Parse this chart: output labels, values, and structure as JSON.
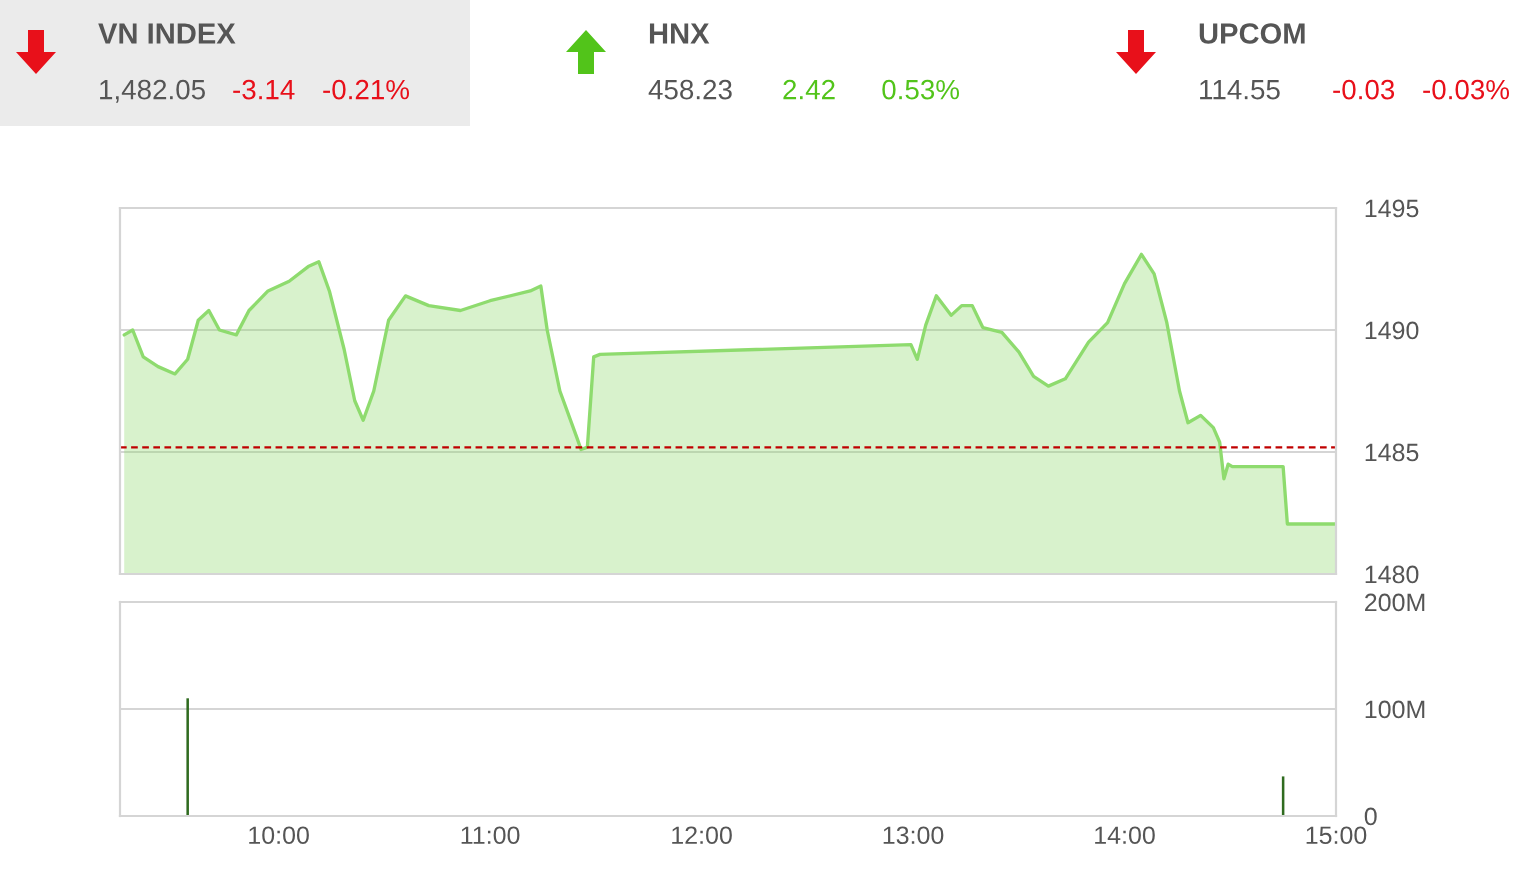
{
  "chart_data": [
    {
      "type": "other",
      "categories": [
        "VN INDEX",
        "HNX",
        "UPCOM"
      ],
      "annotations": [
        "1,482.05",
        "-3.14",
        "-0.21%",
        "458.23",
        "2.42",
        "0.53%",
        "114.55",
        "-0.03",
        "-0.03%"
      ],
      "colors": [
        "#e8101a",
        "#52c41a",
        "#e8101a"
      ]
    },
    {
      "type": "area",
      "x": [
        9.27,
        9.31,
        9.36,
        9.43,
        9.51,
        9.57,
        9.62,
        9.67,
        9.72,
        9.8,
        9.86,
        9.95,
        10.05,
        10.14,
        10.19,
        10.24,
        10.31,
        10.36,
        10.4,
        10.45,
        10.52,
        10.6,
        10.71,
        10.86,
        11.0,
        11.19,
        11.24,
        11.27,
        11.33,
        11.41,
        11.43,
        11.46,
        11.49,
        11.52,
        12.99,
        13.02,
        13.06,
        13.11,
        13.18,
        13.23,
        13.28,
        13.33,
        13.42,
        13.5,
        13.57,
        13.64,
        13.72,
        13.83,
        13.92,
        14.0,
        14.08,
        14.14,
        14.2,
        14.26,
        14.3,
        14.36,
        14.42,
        14.45,
        14.47,
        14.49,
        14.51,
        14.75,
        14.77,
        15.0
      ],
      "series": [
        {
          "color": "#8edb6e",
          "values": [
            1489.8,
            1490.0,
            1488.9,
            1488.5,
            1488.2,
            1488.8,
            1490.4,
            1490.8,
            1490.0,
            1489.8,
            1490.8,
            1491.6,
            1492.0,
            1492.6,
            1492.8,
            1491.6,
            1489.2,
            1487.1,
            1486.3,
            1487.5,
            1490.4,
            1491.4,
            1491.0,
            1490.8,
            1491.2,
            1491.6,
            1491.8,
            1490.0,
            1487.5,
            1485.6,
            1485.1,
            1485.2,
            1488.9,
            1489.0,
            1489.4,
            1488.8,
            1490.2,
            1491.4,
            1490.6,
            1491.0,
            1491.0,
            1490.1,
            1489.9,
            1489.1,
            1488.1,
            1487.7,
            1488.0,
            1489.5,
            1490.3,
            1491.9,
            1493.1,
            1492.3,
            1490.3,
            1487.5,
            1486.2,
            1486.5,
            1486.0,
            1485.4,
            1483.9,
            1484.5,
            1484.4,
            1484.4,
            1482.05,
            1482.05
          ]
        }
      ],
      "ylim": [
        1480,
        1495
      ],
      "yticks": [
        1480,
        1485,
        1490,
        1495
      ],
      "xlim": [
        9.25,
        15.0
      ],
      "ref_lines": [
        {
          "axis": "y",
          "value": 1485.19,
          "color": "#c00000",
          "line_style": "dashed"
        }
      ],
      "grid": "y",
      "tick_labels": "y"
    },
    {
      "type": "bar",
      "x": [
        9.57,
        14.75
      ],
      "series": [
        {
          "color": "#2f6b1f",
          "values": [
            110,
            37
          ]
        }
      ],
      "ylim": [
        0,
        200
      ],
      "yticks": [
        0,
        {
          "value": 100,
          "label": "100M"
        },
        {
          "value": 200,
          "label": "200M"
        }
      ],
      "xlim": [
        9.25,
        15.0
      ],
      "xticks": [
        {
          "value": 10,
          "label": "10:00"
        },
        {
          "value": 11,
          "label": "11:00"
        },
        {
          "value": 12,
          "label": "12:00"
        },
        {
          "value": 13,
          "label": "13:00"
        },
        {
          "value": 14,
          "label": "14:00"
        },
        {
          "value": 15,
          "label": "15:00"
        }
      ],
      "grid": "y"
    }
  ]
}
